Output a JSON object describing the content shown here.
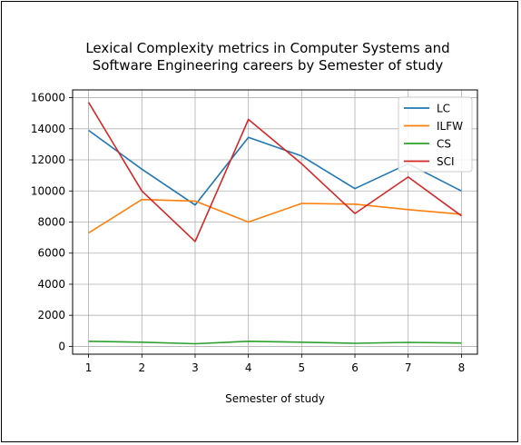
{
  "chart_data": {
    "type": "line",
    "title": "Lexical Complexity metrics in Computer Systems and Software Engineering careers by Semester of study",
    "title_lines": [
      "Lexical Complexity metrics in Computer Systems and",
      "Software Engineering careers by Semester of study"
    ],
    "xlabel": "Semester of study",
    "ylabel": "",
    "x": [
      1,
      2,
      3,
      4,
      5,
      6,
      7,
      8
    ],
    "xticks": [
      "1",
      "2",
      "3",
      "4",
      "5",
      "6",
      "7",
      "8"
    ],
    "yticks": [
      "0",
      "2000",
      "4000",
      "6000",
      "8000",
      "10000",
      "12000",
      "14000",
      "16000"
    ],
    "xlim": [
      0.7,
      8.3
    ],
    "ylim": [
      -500,
      16500
    ],
    "grid": true,
    "legend_position": "top-right",
    "series": [
      {
        "name": "LC",
        "color": "#1f77b4",
        "values": [
          13900,
          11400,
          9100,
          13450,
          12250,
          10150,
          11750,
          10000
        ]
      },
      {
        "name": "ILFW",
        "color": "#ff7f0e",
        "values": [
          7300,
          9450,
          9350,
          8000,
          9200,
          9150,
          8800,
          8500
        ]
      },
      {
        "name": "CS",
        "color": "#2ca02c",
        "values": [
          330,
          270,
          170,
          330,
          270,
          200,
          260,
          220
        ]
      },
      {
        "name": "SCI",
        "color": "#d62728",
        "values": [
          15700,
          10000,
          6750,
          14600,
          11750,
          8550,
          10900,
          8400
        ]
      }
    ]
  }
}
